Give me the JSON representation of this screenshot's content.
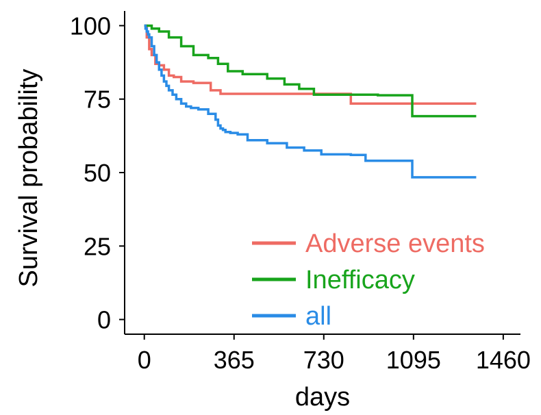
{
  "chart_data": {
    "type": "line",
    "title": "",
    "xlabel": "days",
    "ylabel": "Survival probability",
    "xlim": [
      -80,
      1530
    ],
    "ylim": [
      -5,
      105
    ],
    "xticks": [
      0,
      365,
      730,
      1095,
      1460
    ],
    "xtick_labels": [
      "0",
      "365",
      "730",
      "1095",
      "1460"
    ],
    "yticks": [
      0,
      25,
      50,
      75,
      100
    ],
    "ytick_labels": [
      "0",
      "25",
      "50",
      "75",
      "100"
    ],
    "legend_position": "bottom-right",
    "series": [
      {
        "name": "Adverse events",
        "color": "#ee6b63",
        "x": [
          0,
          10,
          20,
          30,
          45,
          60,
          80,
          100,
          120,
          150,
          200,
          270,
          310,
          400,
          500,
          600,
          700,
          800,
          840,
          1000,
          1095,
          1200,
          1350
        ],
        "y": [
          100,
          96,
          92,
          90,
          87,
          86.5,
          85,
          83,
          82.5,
          81,
          80.5,
          78,
          76.8,
          76.8,
          76.8,
          76.8,
          76.8,
          76.8,
          73.5,
          73.5,
          73.5,
          73.5,
          73.5
        ]
      },
      {
        "name": "Inefficacy",
        "color": "#18a41c",
        "x": [
          0,
          30,
          60,
          100,
          150,
          200,
          260,
          300,
          340,
          400,
          500,
          570,
          630,
          690,
          760,
          840,
          950,
          1050,
          1090,
          1200,
          1350
        ],
        "y": [
          100,
          99,
          98,
          96,
          93,
          90,
          89,
          87,
          84.5,
          83.5,
          82,
          80,
          78.5,
          76.5,
          76.5,
          76.5,
          76.3,
          76.3,
          69.2,
          69.2,
          69.2
        ]
      },
      {
        "name": "all",
        "color": "#2a8ce6",
        "x": [
          0,
          5,
          10,
          15,
          20,
          30,
          40,
          50,
          60,
          70,
          80,
          90,
          100,
          115,
          130,
          150,
          170,
          190,
          220,
          260,
          290,
          300,
          310,
          320,
          330,
          350,
          380,
          420,
          500,
          580,
          650,
          720,
          780,
          840,
          900,
          1000,
          1090,
          1200,
          1350
        ],
        "y": [
          100,
          99,
          98,
          97,
          96,
          93,
          90,
          87.5,
          85,
          83,
          81,
          79.5,
          78,
          76.5,
          75,
          73.5,
          72.5,
          72,
          71.5,
          70,
          68,
          66,
          65,
          64.5,
          63.8,
          63.5,
          63,
          61,
          60,
          58.5,
          57.5,
          56.2,
          56.2,
          56,
          54,
          54,
          48.4,
          48.4,
          48.4
        ]
      }
    ]
  }
}
